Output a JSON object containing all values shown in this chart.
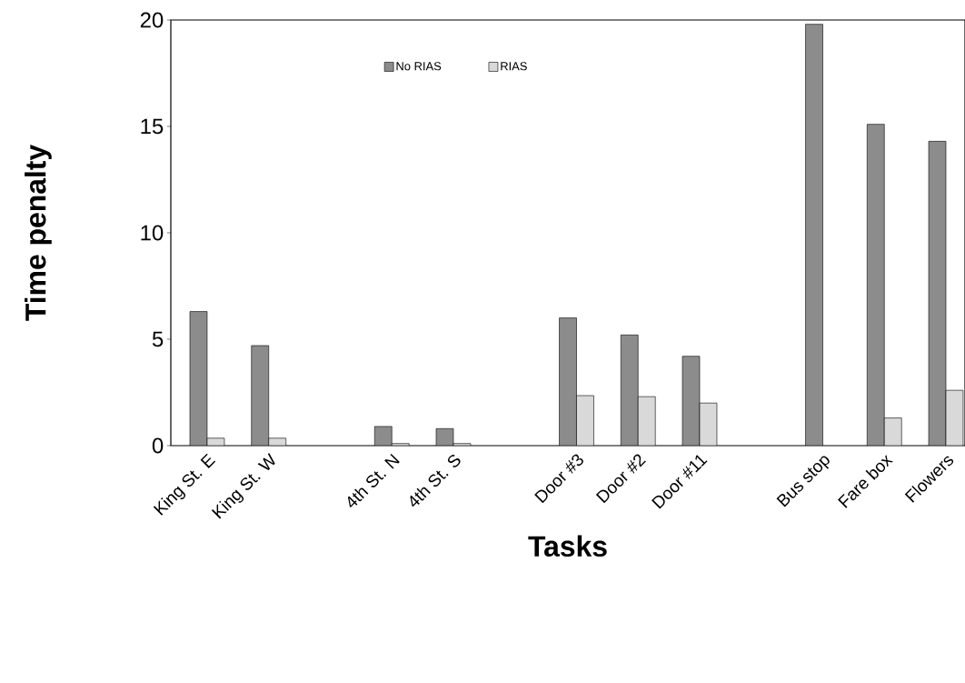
{
  "chart_data": {
    "type": "bar",
    "xlabel": "Tasks",
    "ylabel": "Time penalty",
    "categories": [
      "King St. E",
      "King St. W",
      null,
      "4th St. N",
      "4th St. S",
      null,
      "Door #3",
      "Door #2",
      "Door #11",
      null,
      "Bus stop",
      "Fare box",
      "Flowers"
    ],
    "series": [
      {
        "name": "No RIAS",
        "color": "#8c8c8c",
        "values": [
          6.3,
          4.7,
          null,
          0.9,
          0.8,
          null,
          6.0,
          5.2,
          4.2,
          null,
          19.8,
          15.1,
          14.3
        ]
      },
      {
        "name": "RIAS",
        "color": "#d9d9d9",
        "values": [
          0.35,
          0.35,
          null,
          0.1,
          0.1,
          null,
          2.35,
          2.3,
          2.0,
          null,
          null,
          1.3,
          2.6
        ]
      }
    ],
    "ylim": [
      0,
      20
    ],
    "yticks": [
      0,
      5,
      10,
      15,
      20
    ],
    "grid": false,
    "legend": "top"
  }
}
